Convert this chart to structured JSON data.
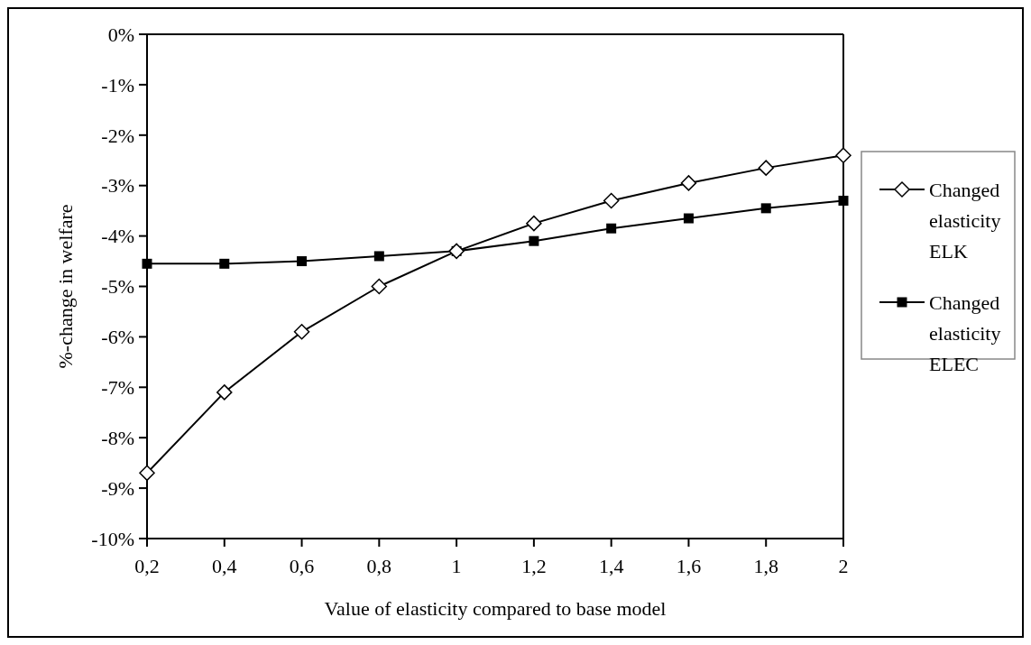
{
  "chart_data": {
    "type": "line",
    "xlabel": "Value of elasticity compared to base model",
    "ylabel": "%-change in welfare",
    "x": [
      0.2,
      0.4,
      0.6,
      0.8,
      1,
      1.2,
      1.4,
      1.6,
      1.8,
      2
    ],
    "series": [
      {
        "name": "Changed elasticity ELK",
        "color": "#000000",
        "marker": "diamond",
        "values": [
          -8.7,
          -7.1,
          -5.9,
          -5.0,
          -4.3,
          -3.75,
          -3.3,
          -2.95,
          -2.65,
          -2.4
        ]
      },
      {
        "name": "Changed elasticity ELEC",
        "color": "#000000",
        "marker": "square",
        "values": [
          -4.55,
          -4.55,
          -4.5,
          -4.4,
          -4.3,
          -4.1,
          -3.85,
          -3.65,
          -3.45,
          -3.3
        ]
      }
    ],
    "xlim": [
      0.2,
      2
    ],
    "xticks": [
      {
        "value": 0.2,
        "label": "0,2"
      },
      {
        "value": 0.4,
        "label": "0,4"
      },
      {
        "value": 0.6,
        "label": "0,6"
      },
      {
        "value": 0.8,
        "label": "0,8"
      },
      1,
      {
        "value": 1.2,
        "label": "1,2"
      },
      {
        "value": 1.4,
        "label": "1,4"
      },
      {
        "value": 1.6,
        "label": "1,6"
      },
      {
        "value": 1.8,
        "label": "1,8"
      },
      2
    ],
    "ylim": [
      -10,
      0
    ],
    "yticks": [
      {
        "value": -10,
        "label": "-10%"
      },
      {
        "value": -9,
        "label": "-9%"
      },
      {
        "value": -8,
        "label": "-8%"
      },
      {
        "value": -7,
        "label": "-7%"
      },
      {
        "value": -6,
        "label": "-6%"
      },
      {
        "value": -5,
        "label": "-5%"
      },
      {
        "value": -4,
        "label": "-4%"
      },
      {
        "value": -3,
        "label": "-3%"
      },
      {
        "value": -2,
        "label": "-2%"
      },
      {
        "value": -1,
        "label": "-1%"
      },
      {
        "value": 0,
        "label": "0%"
      }
    ],
    "grid": false,
    "legend": "right",
    "line_style": "solid"
  }
}
